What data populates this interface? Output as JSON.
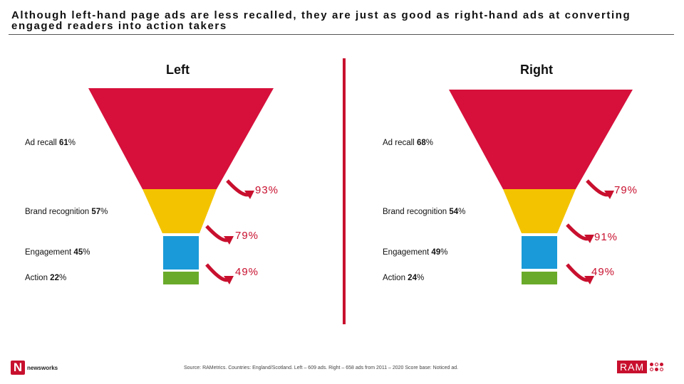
{
  "title": "Although left-hand page ads are less recalled, they are just as good as right-hand ads at converting engaged readers into action takers",
  "chart_data": [
    {
      "type": "funnel",
      "side": "Left",
      "stages": [
        {
          "name": "Ad recall",
          "value": "61"
        },
        {
          "name": "Brand recognition",
          "value": "57"
        },
        {
          "name": "Engagement",
          "value": "45"
        },
        {
          "name": "Action",
          "value": "22"
        }
      ],
      "conversions": [
        "93%",
        "79%",
        "49%"
      ]
    },
    {
      "type": "funnel",
      "side": "Right",
      "stages": [
        {
          "name": "Ad recall",
          "value": "68"
        },
        {
          "name": "Brand recognition",
          "value": "54"
        },
        {
          "name": "Engagement",
          "value": "49"
        },
        {
          "name": "Action",
          "value": "24"
        }
      ],
      "conversions": [
        "79%",
        "91%",
        "49%"
      ]
    }
  ],
  "percent_sign": "%",
  "colors": {
    "recall": "#d6103b",
    "recognition": "#f3c300",
    "engagement": "#1a9ad8",
    "action": "#6aaa2a",
    "accent": "#c8102e"
  },
  "footer": {
    "source": "Source: RAMetrics. Countries: England/Scotland. Left – 609 ads. Right – 658 ads from 2011 – 2020 Score base: Noticed ad.",
    "newsworks_initial": "N",
    "newsworks_text": "newsworks",
    "ram_text": "RAM"
  }
}
